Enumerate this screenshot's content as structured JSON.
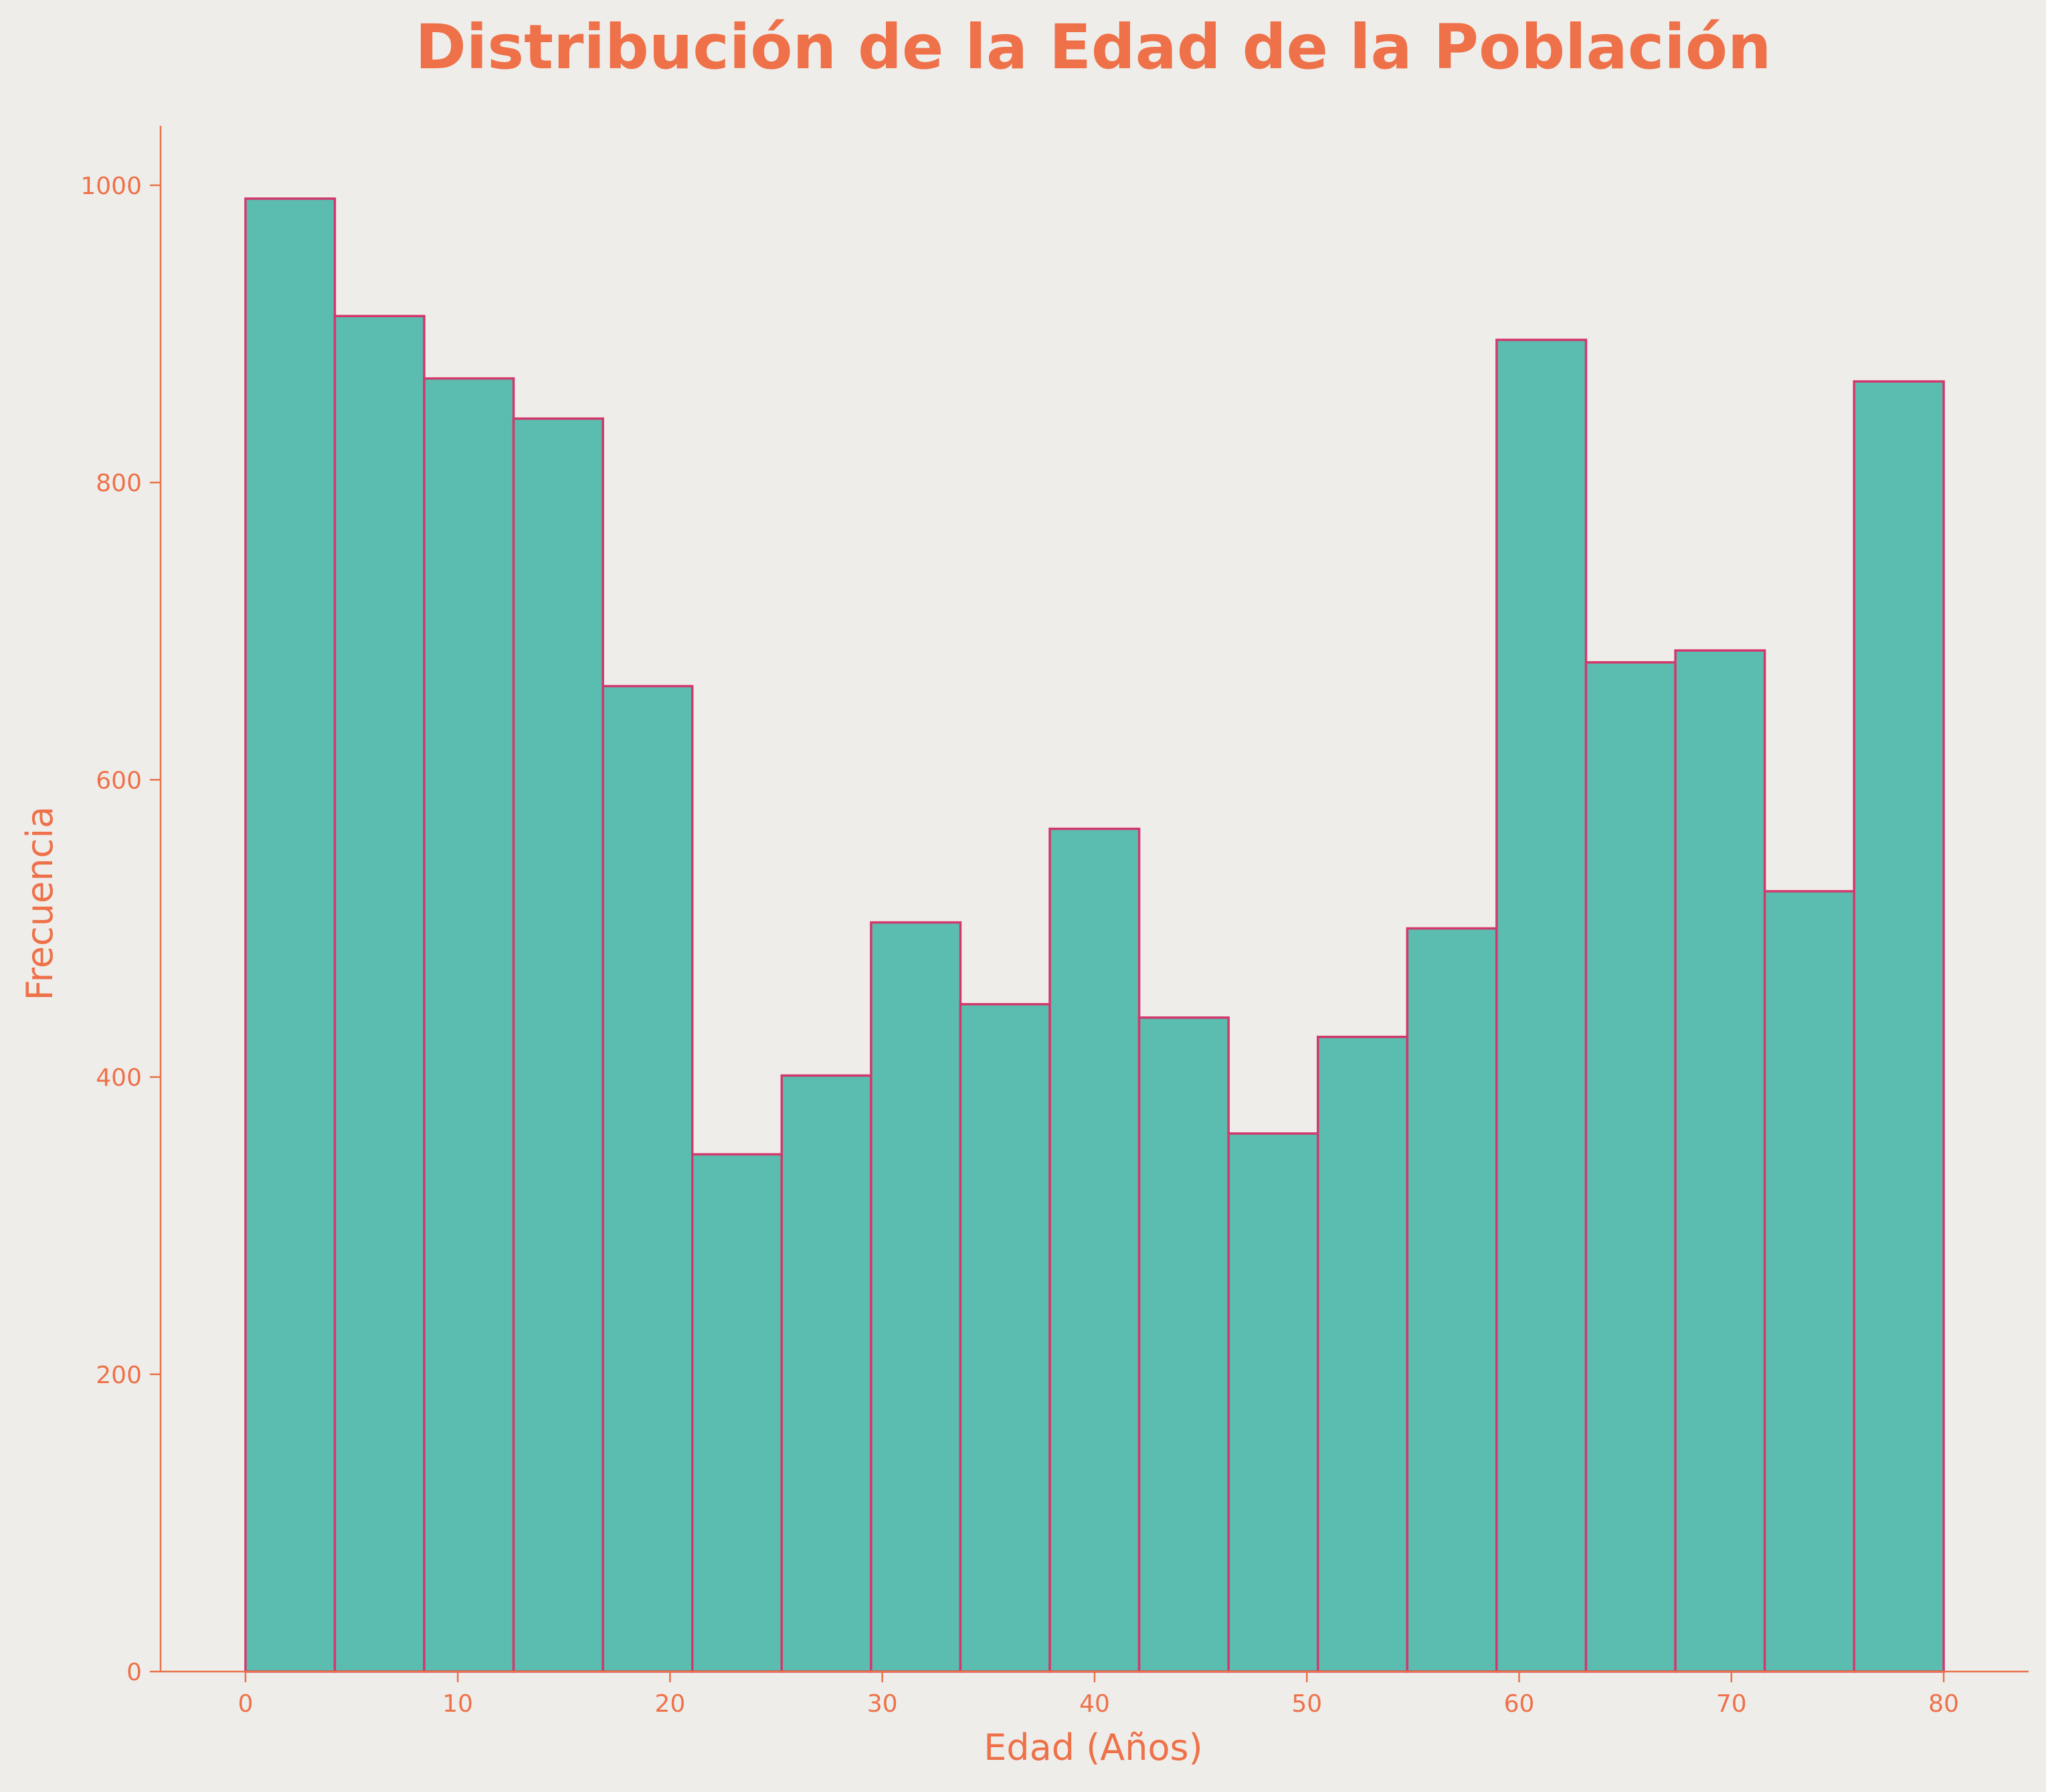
{
  "chart_data": {
    "type": "bar",
    "title": "Distribución de la Edad de la Población",
    "xlabel": "Edad (Años)",
    "ylabel": "Frecuencia",
    "bin_edges": [
      0,
      4.21,
      8.42,
      12.63,
      16.84,
      21.05,
      25.26,
      29.47,
      33.68,
      37.89,
      42.1,
      46.31,
      50.52,
      54.73,
      58.94,
      63.15,
      67.36,
      71.57,
      75.78,
      80
    ],
    "values": [
      991,
      912,
      870,
      843,
      663,
      348,
      401,
      504,
      449,
      567,
      440,
      362,
      427,
      500,
      896,
      679,
      687,
      525,
      868
    ],
    "xlim": [
      -4,
      84
    ],
    "ylim": [
      0,
      1040
    ],
    "x_ticks": [
      0,
      10,
      20,
      30,
      40,
      50,
      60,
      70,
      80
    ],
    "y_ticks": [
      0,
      200,
      400,
      600,
      800,
      1000
    ],
    "grid": false,
    "colors": {
      "bar_fill": "#5bbdb0",
      "bar_edge": "#d2386c",
      "text": "#ee7149",
      "axis": "#e8734a",
      "background": "#efedea"
    }
  }
}
